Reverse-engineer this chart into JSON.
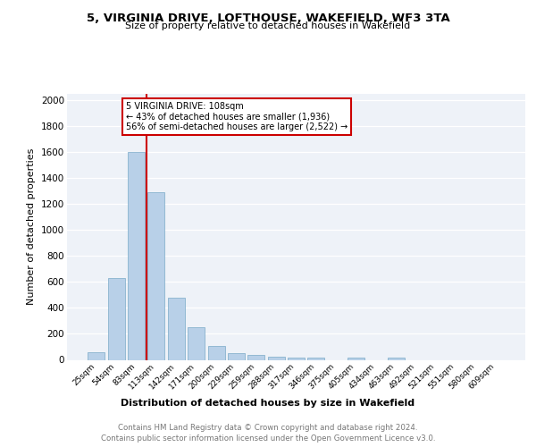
{
  "title": "5, VIRGINIA DRIVE, LOFTHOUSE, WAKEFIELD, WF3 3TA",
  "subtitle": "Size of property relative to detached houses in Wakefield",
  "xlabel": "Distribution of detached houses by size in Wakefield",
  "ylabel": "Number of detached properties",
  "categories": [
    "25sqm",
    "54sqm",
    "83sqm",
    "113sqm",
    "142sqm",
    "171sqm",
    "200sqm",
    "229sqm",
    "259sqm",
    "288sqm",
    "317sqm",
    "346sqm",
    "375sqm",
    "405sqm",
    "434sqm",
    "463sqm",
    "492sqm",
    "521sqm",
    "551sqm",
    "580sqm",
    "609sqm"
  ],
  "values": [
    60,
    630,
    1600,
    1295,
    480,
    250,
    105,
    55,
    38,
    22,
    18,
    18,
    0,
    18,
    0,
    20,
    0,
    0,
    0,
    0,
    0
  ],
  "bar_color": "#b8d0e8",
  "bar_edge_color": "#7aaac8",
  "property_line_color": "#cc0000",
  "annotation_text": "5 VIRGINIA DRIVE: 108sqm\n← 43% of detached houses are smaller (1,936)\n56% of semi-detached houses are larger (2,522) →",
  "annotation_box_color": "#cc0000",
  "ylim": [
    0,
    2050
  ],
  "yticks": [
    0,
    200,
    400,
    600,
    800,
    1000,
    1200,
    1400,
    1600,
    1800,
    2000
  ],
  "background_color": "#eef2f8",
  "footer_line1": "Contains HM Land Registry data © Crown copyright and database right 2024.",
  "footer_line2": "Contains public sector information licensed under the Open Government Licence v3.0."
}
